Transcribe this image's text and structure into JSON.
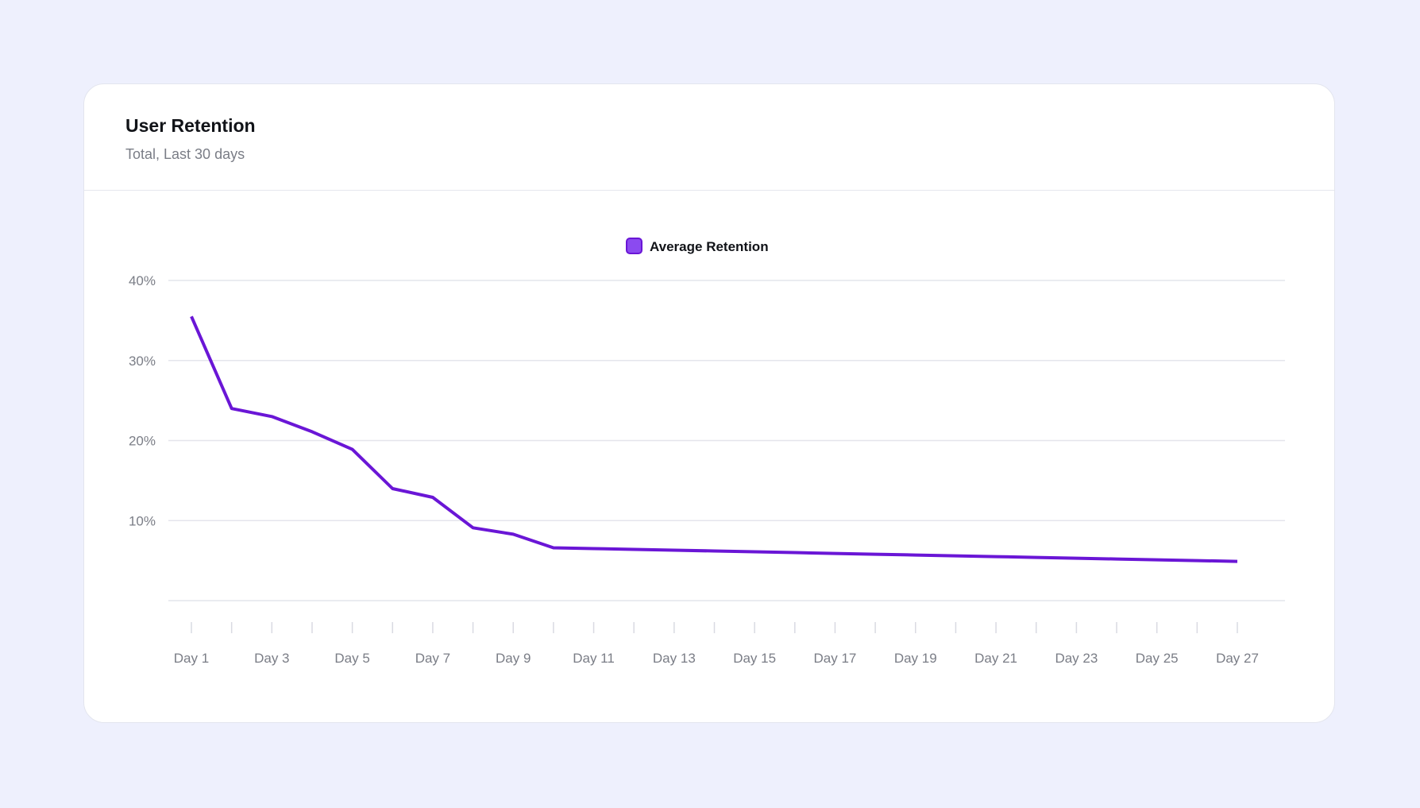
{
  "card": {
    "title": "User Retention",
    "subtitle": "Total, Last 30 days"
  },
  "colors": {
    "background": "#eef0fd",
    "line": "#6a16d6",
    "legend_fill": "#8b4af0",
    "gridline": "#e4e5ec",
    "axis_text": "#7a7d86"
  },
  "chart_data": {
    "type": "line",
    "title": "User Retention",
    "subtitle": "Total, Last 30 days",
    "xlabel": "",
    "ylabel": "",
    "ylim": [
      0,
      40
    ],
    "yticks": [
      10,
      20,
      30,
      40
    ],
    "ytick_labels": [
      "10%",
      "20%",
      "30%",
      "40%"
    ],
    "grid": true,
    "legend_position": "top-center",
    "categories": [
      "Day 1",
      "Day 2",
      "Day 3",
      "Day 4",
      "Day 5",
      "Day 6",
      "Day 7",
      "Day 8",
      "Day 9",
      "Day 10",
      "Day 11",
      "Day 12",
      "Day 13",
      "Day 14",
      "Day 15",
      "Day 16",
      "Day 17",
      "Day 18",
      "Day 19",
      "Day 20",
      "Day 21",
      "Day 22",
      "Day 23",
      "Day 24",
      "Day 25",
      "Day 26",
      "Day 27"
    ],
    "x_tick_labels": [
      "Day 1",
      "Day 3",
      "Day 5",
      "Day 7",
      "Day 9",
      "Day 11",
      "Day 13",
      "Day 15",
      "Day 17",
      "Day 19",
      "Day 21",
      "Day 23",
      "Day 25",
      "Day 27"
    ],
    "series": [
      {
        "name": "Average Retention",
        "values": [
          35.5,
          24,
          23,
          21.1,
          18.9,
          14,
          12.9,
          9.1,
          8.3,
          6.6,
          6.5,
          6.4,
          6.3,
          6.2,
          6.1,
          6.0,
          5.9,
          5.8,
          5.7,
          5.6,
          5.5,
          5.4,
          5.3,
          5.2,
          5.1,
          5.0,
          4.9
        ]
      }
    ]
  }
}
